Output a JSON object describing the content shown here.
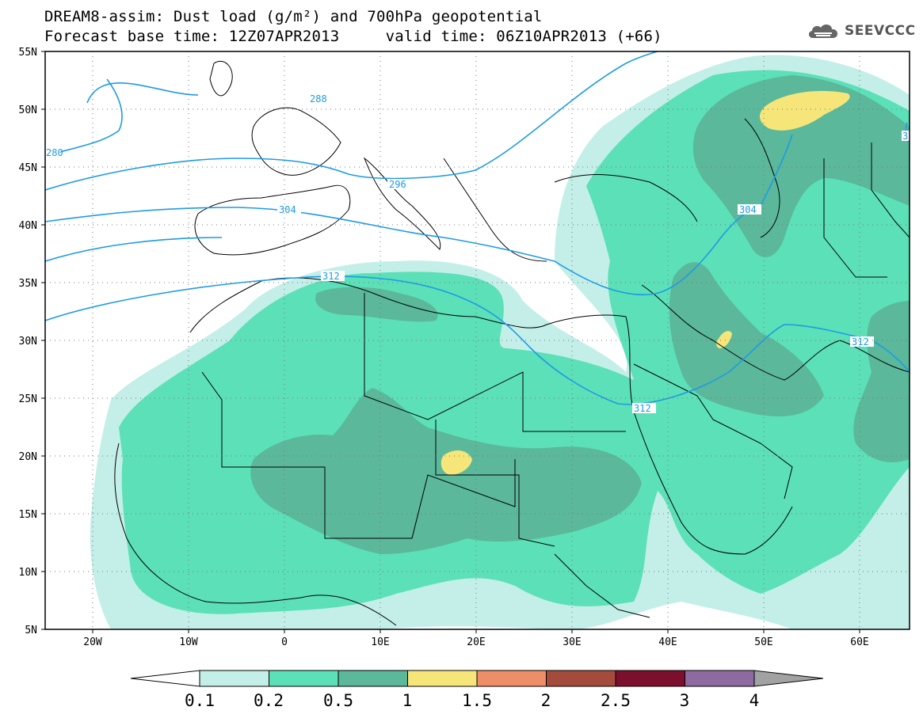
{
  "title": {
    "line1": "DREAM8-assim: Dust load (g/m²) and 700hPa geopotential",
    "line2": "Forecast base time: 12Z07APR2013     valid time: 06Z10APR2013 (+66)"
  },
  "logo": {
    "text": "SEEVCCC",
    "icon": "cloud-icon"
  },
  "map": {
    "lat_labels": [
      "55N",
      "50N",
      "45N",
      "40N",
      "35N",
      "30N",
      "25N",
      "20N",
      "15N",
      "10N",
      "5N"
    ],
    "lon_labels": [
      "20W",
      "10W",
      "0",
      "10E",
      "20E",
      "30E",
      "40E",
      "50E",
      "60E"
    ],
    "contour_labels": [
      "288",
      "280",
      "296",
      "304",
      "312",
      "304",
      "312",
      "312",
      "3"
    ]
  },
  "colorbar": {
    "colors": [
      "#c3efe8",
      "#5ce0b7",
      "#5bb89a",
      "#f6e67a",
      "#ee8e68",
      "#a44b3c",
      "#7c0f2e",
      "#8d6a9f"
    ],
    "end_colors": {
      "low": "#ffffff",
      "high": "#a2a2a2"
    },
    "labels": [
      "0.1",
      "0.2",
      "0.5",
      "1",
      "1.5",
      "2",
      "2.5",
      "3",
      "4"
    ]
  }
}
